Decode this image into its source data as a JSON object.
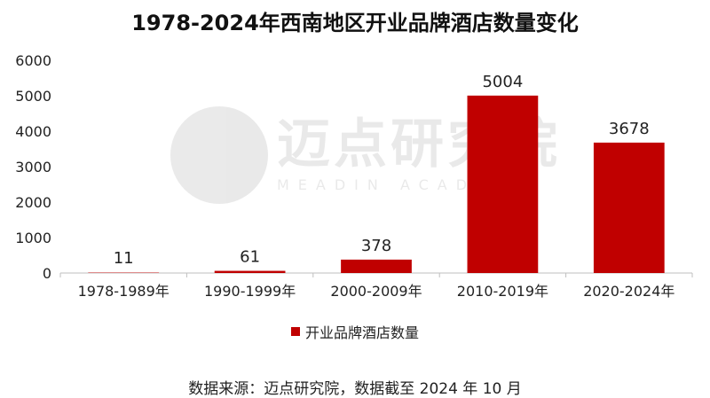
{
  "title": "1978-2024年西南地区开业品牌酒店数量变化",
  "source_note": "数据来源：迈点研究院，数据截至 2024 年 10 月",
  "watermark": {
    "name_cn": "迈点研究院",
    "name_en": "MEADIN ACADEMY"
  },
  "colors": {
    "bar": "#C00000"
  },
  "chart_data": {
    "type": "bar",
    "title": "1978-2024年西南地区开业品牌酒店数量变化",
    "categories": [
      "1978-1989年",
      "1990-1999年",
      "2000-2009年",
      "2010-2019年",
      "2020-2024年"
    ],
    "series": [
      {
        "name": "开业品牌酒店数量",
        "values": [
          11,
          61,
          378,
          5004,
          3678
        ]
      }
    ],
    "yticks": [
      0,
      1000,
      2000,
      3000,
      4000,
      5000,
      6000
    ],
    "ylim": [
      0,
      6000
    ],
    "xlabel": "",
    "ylabel": "",
    "grid": false,
    "legend_position": "bottom"
  }
}
